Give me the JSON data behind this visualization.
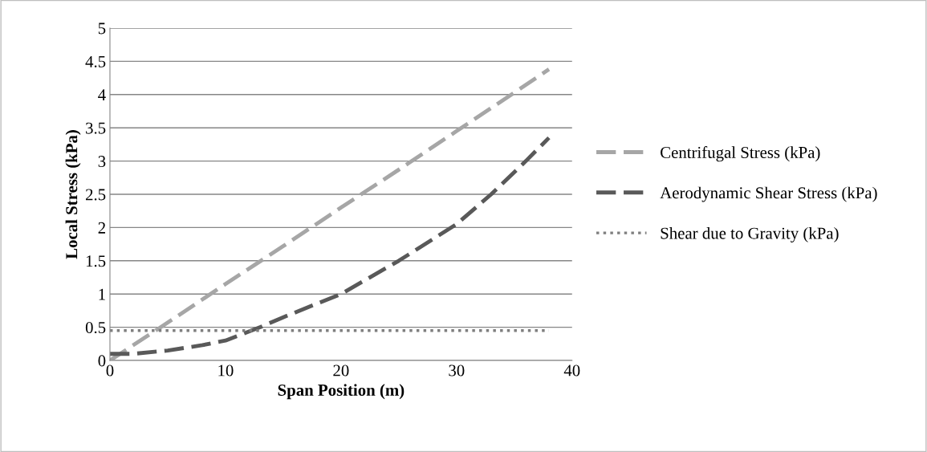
{
  "chart_data": {
    "type": "line",
    "xlabel": "Span Position (m)",
    "ylabel": "Local Stress (kPa)",
    "xlim": [
      0,
      40
    ],
    "xticks": [
      0,
      10,
      20,
      30,
      40
    ],
    "ylim": [
      0,
      5
    ],
    "yticks": [
      0,
      0.5,
      1,
      1.5,
      2,
      2.5,
      3,
      3.5,
      4,
      4.5,
      5
    ],
    "grid": "y",
    "legend": "right",
    "marker": "none",
    "series": [
      {
        "name": "Centrifugal Stress (kPa)",
        "color": "#a6a6a6",
        "line_style": "dashed",
        "x": [
          0,
          5,
          10,
          15,
          20,
          25,
          30,
          35,
          38
        ],
        "values": [
          0,
          0.57,
          1.15,
          1.72,
          2.3,
          2.87,
          3.45,
          4.03,
          4.38
        ]
      },
      {
        "name": "Aerodynamic Shear Stress (kPa)",
        "color": "#595959",
        "line_style": "dashed",
        "x": [
          0,
          2,
          5,
          8,
          10,
          13,
          15,
          20,
          25,
          30,
          33,
          36,
          38
        ],
        "values": [
          0.1,
          0.1,
          0.15,
          0.23,
          0.3,
          0.5,
          0.65,
          1.0,
          1.5,
          2.05,
          2.5,
          3.0,
          3.35
        ]
      },
      {
        "name": "Shear due to Gravity (kPa)",
        "color": "#7f7f7f",
        "line_style": "dotted",
        "x": [
          0,
          38
        ],
        "values": [
          0.45,
          0.45
        ]
      }
    ]
  }
}
